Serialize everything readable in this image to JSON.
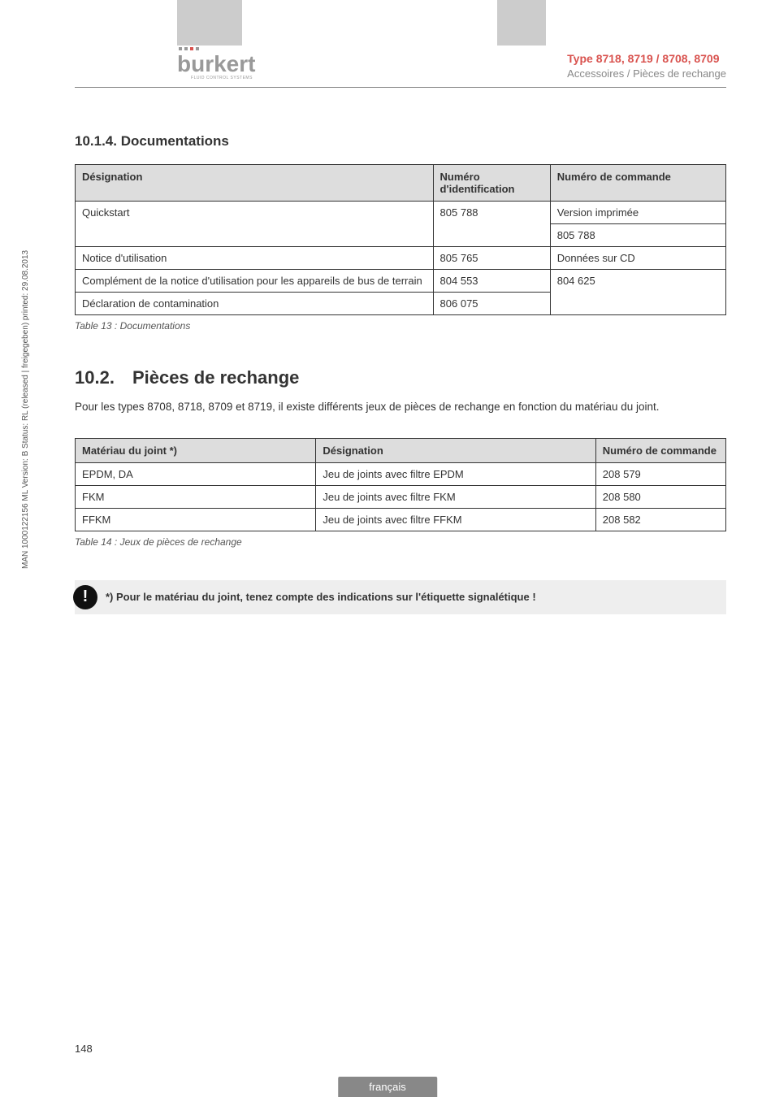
{
  "header": {
    "type_line": "Type 8718, 8719 / 8708, 8709",
    "subtitle": "Accessoires / Pièces de rechange",
    "logo_name": "burkert",
    "logo_sub": "FLUID CONTROL SYSTEMS"
  },
  "section_1014": {
    "heading": "10.1.4.  Documentations",
    "table": {
      "columns": [
        "Désignation",
        "Numéro d'identification",
        "Numéro de commande"
      ],
      "col_widths": [
        "55%",
        "18%",
        "27%"
      ],
      "rows": [
        {
          "cells": [
            "Quickstart",
            "805 788",
            "Version imprimée"
          ],
          "merge_down_3": false
        },
        {
          "cells": [
            "",
            "",
            "805 788"
          ],
          "continuation": true
        },
        {
          "cells": [
            "Notice d'utilisation",
            "805 765",
            "Données sur CD"
          ]
        },
        {
          "cells": [
            "Complément de la notice d'utilisation pour les appareils de bus de terrain",
            "804 553",
            "804 625"
          ],
          "rowspan_3": 2
        },
        {
          "cells": [
            "Déclaration de contamination",
            "806 075",
            ""
          ],
          "skip_3": true
        }
      ]
    },
    "caption": "Table 13 :  Documentations"
  },
  "section_102": {
    "heading_num": "10.2.",
    "heading_text": "Pièces de rechange",
    "paragraph": "Pour les types 8708, 8718, 8709 et 8719, il existe différents jeux de pièces de rechange en fonction du matériau du joint.",
    "table": {
      "columns": [
        "Matériau du joint *)",
        "Désignation",
        "Numéro de commande"
      ],
      "col_widths": [
        "37%",
        "43%",
        "20%"
      ],
      "rows": [
        {
          "cells": [
            "EPDM, DA",
            "Jeu de joints avec filtre EPDM",
            "208 579"
          ]
        },
        {
          "cells": [
            "FKM",
            "Jeu de joints avec filtre FKM",
            "208 580"
          ]
        },
        {
          "cells": [
            "FFKM",
            "Jeu de joints avec filtre FFKM",
            "208 582"
          ]
        }
      ]
    },
    "caption": "Table 14 :  Jeux de pièces de rechange",
    "note": "*)   Pour le matériau du joint, tenez compte des indications sur l'étiquette signalétique !"
  },
  "sidetext": "MAN 1000122156 ML Version: B Status: RL (released | freigegeben) printed: 29.08.2013",
  "page_num": "148",
  "footer_lang": "français"
}
